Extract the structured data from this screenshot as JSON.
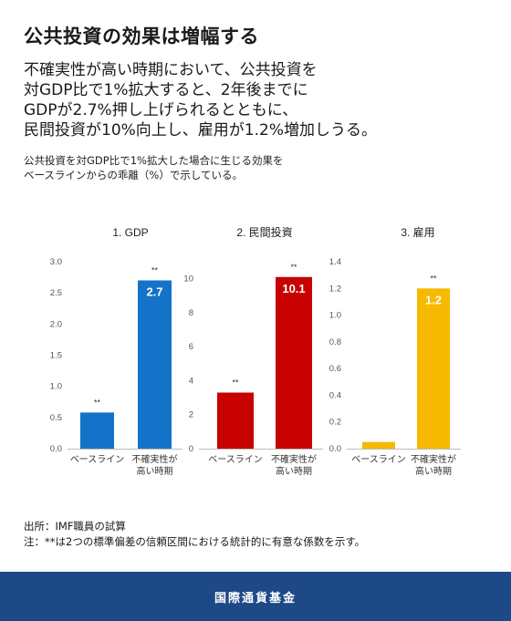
{
  "title": "公共投資の効果は増幅する",
  "headline": [
    "不確実性が高い時期において、公共投資を",
    "対GDP比で1%拡大すると、2年後までに",
    "GDPが2.7%押し上げられるとともに、",
    "民間投資が10%向上し、雇用が1.2%増加しうる。"
  ],
  "subtitle": [
    "公共投資を対GDP比で1%拡大した場合に生じる効果を",
    "ベースラインからの乖離（%）で示している。"
  ],
  "chart_data": [
    {
      "type": "bar",
      "title": "1. GDP",
      "categories": [
        "ベースライン",
        "不確実性が|高い時期"
      ],
      "values": [
        0.58,
        2.7
      ],
      "value_labels": [
        "",
        "2.7"
      ],
      "significance": [
        "**",
        "**"
      ],
      "ylim": [
        0,
        3.0
      ],
      "yticks": [
        "0.0",
        "0.5",
        "1.0",
        "1.5",
        "2.0",
        "2.5",
        "3.0"
      ],
      "color": "#1473c9"
    },
    {
      "type": "bar",
      "title": "2. 民間投資",
      "categories": [
        "ベースライン",
        "不確実性が|高い時期"
      ],
      "values": [
        3.3,
        10.1
      ],
      "value_labels": [
        "",
        "10.1"
      ],
      "significance": [
        "**",
        "**"
      ],
      "ylim": [
        0,
        11
      ],
      "yticks": [
        "0",
        "2",
        "4",
        "6",
        "8",
        "10"
      ],
      "color": "#c70000"
    },
    {
      "type": "bar",
      "title": "3. 雇用",
      "categories": [
        "ベースライン",
        "不確実性が|高い時期"
      ],
      "values": [
        0.05,
        1.2
      ],
      "value_labels": [
        "",
        "1.2"
      ],
      "significance": [
        "",
        "**"
      ],
      "ylim": [
        0,
        1.4
      ],
      "yticks": [
        "0.0",
        "0.2",
        "0.4",
        "0.6",
        "0.8",
        "1.0",
        "1.2",
        "1.4"
      ],
      "color": "#f7b900"
    }
  ],
  "notes": [
    "出所：IMF職員の試算",
    "注：**は2つの標準偏差の信頼区間における統計的に有意な係数を示す。"
  ],
  "footer": "国際通貨基金"
}
